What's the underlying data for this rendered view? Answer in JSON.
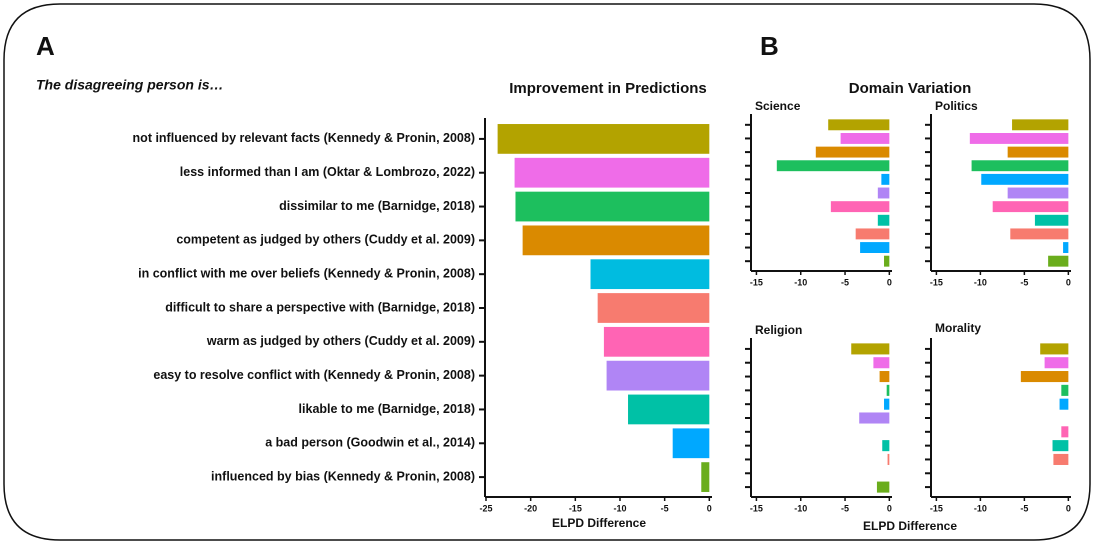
{
  "panel_labels": [
    "A",
    "B"
  ],
  "prompt": "The disagreeing person is…",
  "domain_title": "Domain Variation",
  "domain_x_label": "ELPD Difference",
  "chart_data": [
    {
      "type": "bar",
      "orientation": "horizontal",
      "title": "Improvement in Predictions",
      "x_label": "ELPD Difference",
      "categories": [
        "not influenced by relevant facts (Kennedy & Pronin, 2008)",
        "less informed than I am (Oktar & Lombrozo, 2022)",
        "dissimilar to me (Barnidge, 2018)",
        "competent as judged by others (Cuddy et al. 2009)",
        "in conflict with me over beliefs (Kennedy & Pronin, 2008)",
        "difficult to share a perspective with (Barnidge, 2018)",
        "warm as judged by others (Cuddy et al. 2009)",
        "easy to resolve conflict with (Kennedy & Pronin, 2008)",
        "likable to me (Barnidge, 2018)",
        "a bad person (Goodwin et al., 2014)",
        "influenced by bias (Kennedy & Pronin, 2008)"
      ],
      "values": [
        -23.7,
        -21.8,
        -21.7,
        -20.9,
        -13.3,
        -12.5,
        -11.8,
        -11.5,
        -9.1,
        -4.1,
        -0.9
      ],
      "colors": [
        "#b3a300",
        "#ef6ce8",
        "#1dbf5e",
        "#da8a00",
        "#00bce0",
        "#f77b6f",
        "#ff64b4",
        "#b085f5",
        "#00c1a6",
        "#00a8ff",
        "#6aad1c"
      ],
      "xlim": [
        -25,
        0.3
      ],
      "xticks": [
        -25,
        -20,
        -15,
        -10,
        -5,
        0
      ]
    },
    {
      "type": "bar",
      "orientation": "horizontal",
      "title": "Science",
      "values": [
        -6.9,
        -5.5,
        -8.3,
        -12.7,
        -0.9,
        -1.3,
        -6.6,
        -1.3,
        -3.8,
        -3.3,
        -0.6
      ],
      "colors": [
        "#b3a300",
        "#ef6ce8",
        "#da8a00",
        "#1dbf5e",
        "#00a8ff",
        "#b085f5",
        "#ff64b4",
        "#00c1a6",
        "#f77b6f",
        "#00a8ff",
        "#6aad1c"
      ],
      "xlim": [
        -15.5,
        0.3
      ],
      "xticks": [
        -15,
        -10,
        -5,
        0
      ]
    },
    {
      "type": "bar",
      "orientation": "horizontal",
      "title": "Politics",
      "values": [
        -6.4,
        -11.2,
        -6.9,
        -11.0,
        -9.9,
        -6.9,
        -8.6,
        -3.8,
        -6.6,
        -0.6,
        -2.3
      ],
      "colors": [
        "#b3a300",
        "#ef6ce8",
        "#da8a00",
        "#1dbf5e",
        "#00a8ff",
        "#b085f5",
        "#ff64b4",
        "#00c1a6",
        "#f77b6f",
        "#00a8ff",
        "#6aad1c"
      ],
      "xlim": [
        -15.5,
        0.3
      ],
      "xticks": [
        -15,
        -10,
        -5,
        0
      ]
    },
    {
      "type": "bar",
      "orientation": "horizontal",
      "title": "Religion",
      "values": [
        -4.3,
        -1.8,
        -1.1,
        -0.3,
        -0.6,
        -3.4,
        null,
        -0.8,
        -0.2,
        null,
        -1.4
      ],
      "colors": [
        "#b3a300",
        "#ef6ce8",
        "#da8a00",
        "#1dbf5e",
        "#00a8ff",
        "#b085f5",
        "#ff64b4",
        "#00c1a6",
        "#f77b6f",
        "#00a8ff",
        "#6aad1c"
      ],
      "xlim": [
        -15.5,
        0.3
      ],
      "xticks": [
        -15,
        -10,
        -5,
        0
      ]
    },
    {
      "type": "bar",
      "orientation": "horizontal",
      "title": "Morality",
      "values": [
        -3.2,
        -2.7,
        -5.4,
        -0.8,
        -1.0,
        null,
        -0.8,
        -1.8,
        -1.7,
        null,
        null
      ],
      "colors": [
        "#b3a300",
        "#ef6ce8",
        "#da8a00",
        "#1dbf5e",
        "#00a8ff",
        "#b085f5",
        "#ff64b4",
        "#00c1a6",
        "#f77b6f",
        "#00a8ff",
        "#6aad1c"
      ],
      "xlim": [
        -15.5,
        0.3
      ],
      "xticks": [
        -15,
        -10,
        -5,
        0
      ]
    }
  ]
}
